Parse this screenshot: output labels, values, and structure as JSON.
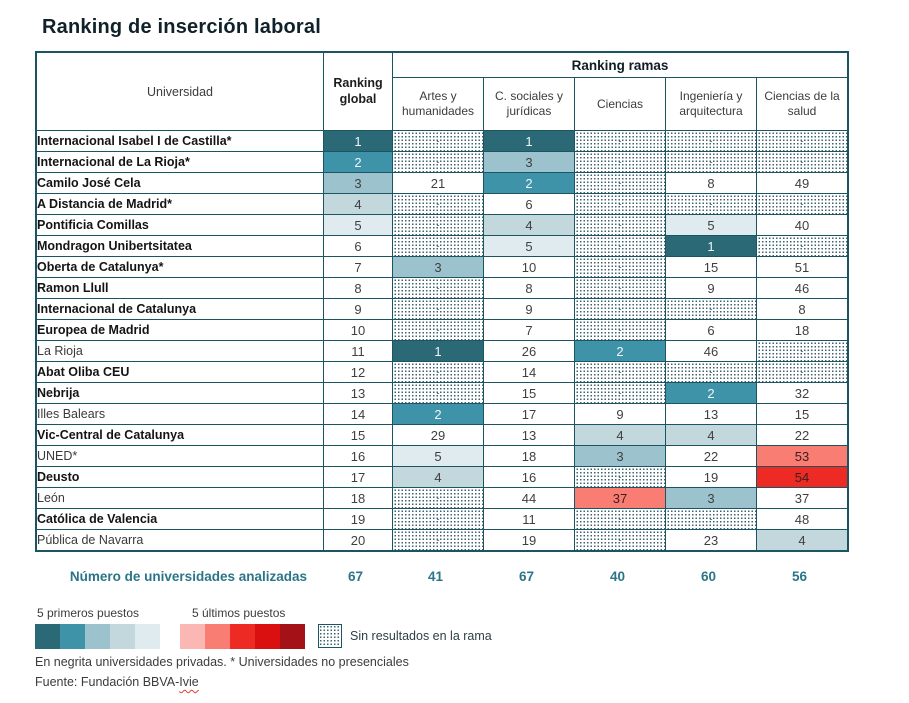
{
  "title": "Ranking de inserción laboral",
  "chart_data": {
    "type": "table",
    "title": "Ranking de inserción laboral",
    "col_university": "Universidad",
    "col_global": "Ranking global",
    "group_header": "Ranking ramas",
    "columns": [
      "Artes y humanidades",
      "C. sociales y jurídicas",
      "Ciencias",
      "Ingeniería y arquitectura",
      "Ciencias de la salud"
    ],
    "rows": [
      {
        "name": "Internacional Isabel I de Castilla*",
        "private": true,
        "global": 1,
        "ramas": [
          null,
          1,
          null,
          null,
          null
        ]
      },
      {
        "name": "Internacional de La Rioja*",
        "private": true,
        "global": 2,
        "ramas": [
          null,
          3,
          null,
          null,
          null
        ]
      },
      {
        "name": "Camilo José Cela",
        "private": true,
        "global": 3,
        "ramas": [
          21,
          2,
          null,
          8,
          49
        ]
      },
      {
        "name": "A Distancia de Madrid*",
        "private": true,
        "global": 4,
        "ramas": [
          null,
          6,
          null,
          null,
          null
        ]
      },
      {
        "name": "Pontificia Comillas",
        "private": true,
        "global": 5,
        "ramas": [
          null,
          4,
          null,
          5,
          40
        ]
      },
      {
        "name": "Mondragon Unibertsitatea",
        "private": true,
        "global": 6,
        "ramas": [
          null,
          5,
          null,
          1,
          null
        ]
      },
      {
        "name": "Oberta de Catalunya*",
        "private": true,
        "global": 7,
        "ramas": [
          3,
          10,
          null,
          15,
          51
        ]
      },
      {
        "name": "Ramon Llull",
        "private": true,
        "global": 8,
        "ramas": [
          null,
          8,
          null,
          9,
          46
        ]
      },
      {
        "name": "Internacional de Catalunya",
        "private": true,
        "global": 9,
        "ramas": [
          null,
          9,
          null,
          null,
          8
        ]
      },
      {
        "name": "Europea de Madrid",
        "private": true,
        "global": 10,
        "ramas": [
          null,
          7,
          null,
          6,
          18
        ]
      },
      {
        "name": "La Rioja",
        "private": false,
        "global": 11,
        "ramas": [
          1,
          26,
          2,
          46,
          null
        ]
      },
      {
        "name": "Abat Oliba CEU",
        "private": true,
        "global": 12,
        "ramas": [
          null,
          14,
          null,
          null,
          null
        ]
      },
      {
        "name": "Nebrija",
        "private": true,
        "global": 13,
        "ramas": [
          null,
          15,
          null,
          2,
          32
        ]
      },
      {
        "name": "Illes Balears",
        "private": false,
        "global": 14,
        "ramas": [
          2,
          17,
          9,
          13,
          15
        ]
      },
      {
        "name": "Vic-Central de Catalunya",
        "private": true,
        "global": 15,
        "ramas": [
          29,
          13,
          4,
          4,
          22
        ]
      },
      {
        "name": "UNED*",
        "private": false,
        "global": 16,
        "ramas": [
          5,
          18,
          3,
          22,
          53
        ]
      },
      {
        "name": "Deusto",
        "private": true,
        "global": 17,
        "ramas": [
          4,
          16,
          null,
          19,
          54
        ]
      },
      {
        "name": "León",
        "private": false,
        "global": 18,
        "ramas": [
          null,
          44,
          37,
          3,
          37
        ]
      },
      {
        "name": "Católica de Valencia",
        "private": true,
        "global": 19,
        "ramas": [
          null,
          11,
          null,
          null,
          48
        ]
      },
      {
        "name": "Pública de Navarra",
        "private": false,
        "global": 20,
        "ramas": [
          null,
          19,
          null,
          23,
          4
        ]
      }
    ],
    "totals": {
      "label": "Número de universidades analizadas",
      "global": 67,
      "ramas": [
        41,
        67,
        40,
        60,
        56
      ]
    },
    "no_result_marker": "-"
  },
  "legend": {
    "first_label": "5 primeros puestos",
    "last_label": "5 últimos puestos",
    "no_results_label": "Sin resultados en la rama"
  },
  "footnotes": {
    "note": "En negrita universidades privadas. * Universidades no presenciales",
    "source_prefix": "Fuente: Fundación BBVA-",
    "source_word": "Ivie"
  },
  "colors": {
    "border": "#1c5562",
    "totals_text": "#2b7588",
    "first_scale": [
      "#2c6977",
      "#3e93a9",
      "#9cc3cd",
      "#c2d8dd",
      "#dfebee"
    ],
    "last_scale": [
      "#fbb7b3",
      "#f97d73",
      "#ee2a24",
      "#d9100f",
      "#a41116"
    ],
    "light_text": "#f0f6f7",
    "dark_text": "#3f3f3f"
  }
}
